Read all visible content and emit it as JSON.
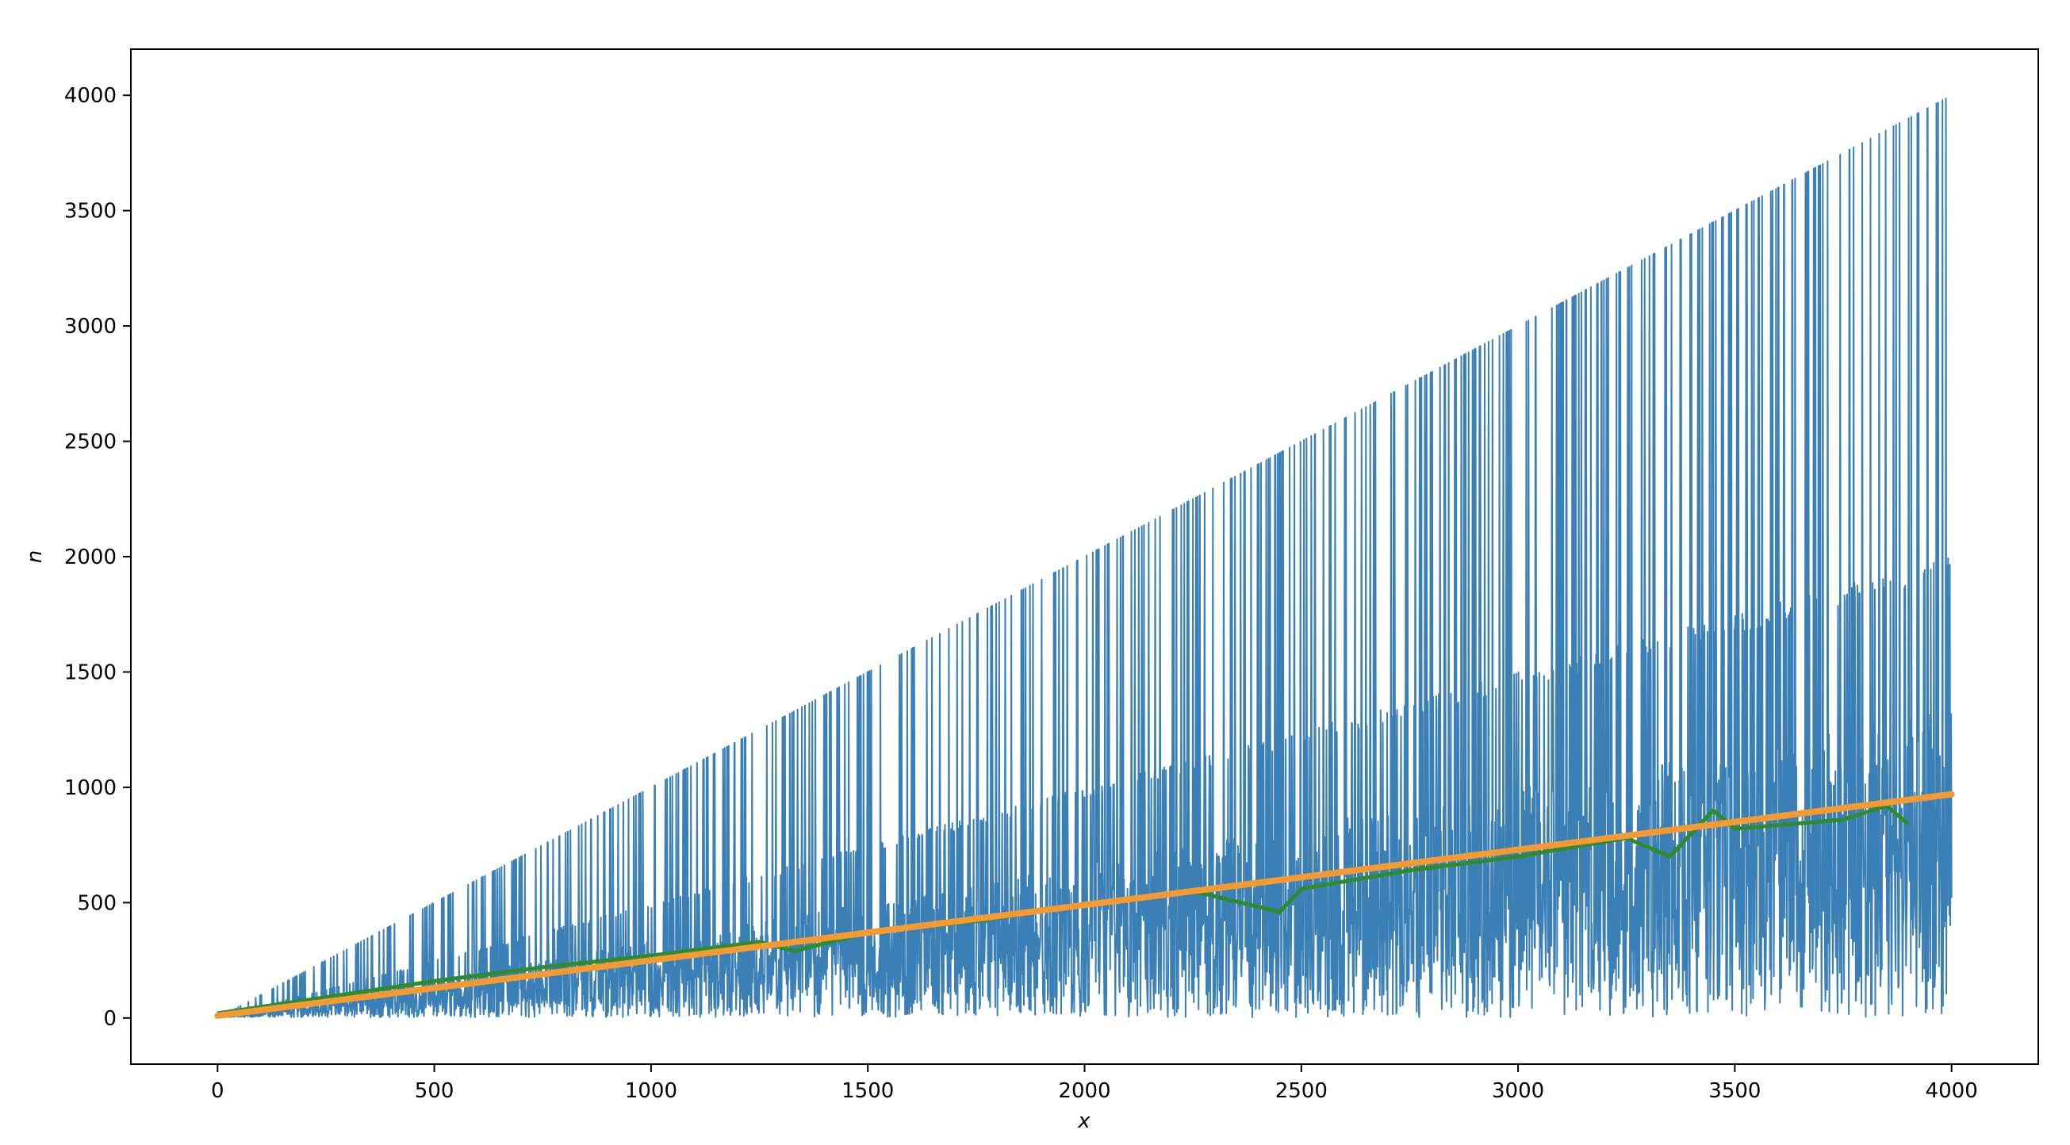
{
  "chart_data": {
    "type": "line",
    "title": "",
    "xlabel": "x",
    "ylabel": "n",
    "xlim": [
      -200,
      4200
    ],
    "ylim": [
      -200,
      4200
    ],
    "xticks": [
      0,
      500,
      1000,
      1500,
      2000,
      2500,
      3000,
      3500,
      4000
    ],
    "yticks": [
      0,
      500,
      1000,
      1500,
      2000,
      2500,
      3000,
      3500,
      4000
    ],
    "grid": false,
    "legend": "none",
    "series": [
      {
        "style": "dense-oscillating",
        "color": "#3a7fb6",
        "x_range": [
          0,
          4000
        ],
        "description_of_envelope": "upper edge follows n = x, frequent drops to n = x/2 and lower; lower edge near 0"
      },
      {
        "color": "#2e8b2e",
        "x": [
          0,
          250,
          500,
          750,
          1000,
          1250,
          1330,
          1500,
          1750,
          2000,
          2250,
          2450,
          2500,
          2750,
          3000,
          3250,
          3350,
          3450,
          3500,
          3750,
          3850,
          3900
        ],
        "y": [
          20,
          90,
          160,
          220,
          270,
          330,
          290,
          370,
          420,
          490,
          550,
          460,
          560,
          640,
          700,
          780,
          700,
          900,
          820,
          860,
          920,
          840
        ]
      },
      {
        "color": "#f39a32",
        "x": [
          0,
          4000
        ],
        "y": [
          10,
          970
        ]
      }
    ]
  }
}
